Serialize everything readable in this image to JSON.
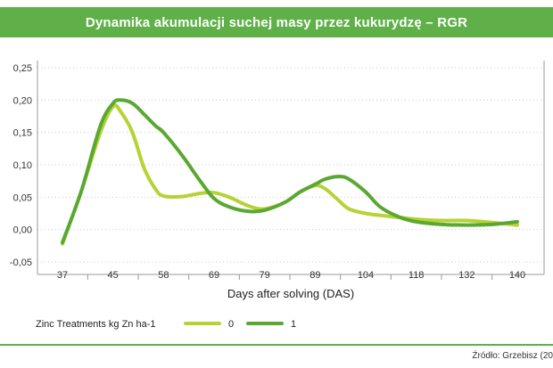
{
  "chart_data": {
    "type": "line",
    "title": "Dynamika akumulacji suchej masy przez kukurydzę – RGR",
    "xlabel": "Days after solving (DAS)",
    "ylabel": "",
    "categories": [
      "37",
      "45",
      "58",
      "69",
      "79",
      "89",
      "104",
      "118",
      "132",
      "140"
    ],
    "yticks": [
      "0,25",
      "0,20",
      "0,15",
      "0,10",
      "0,05",
      "0,00",
      "-0,05"
    ],
    "ylim": [
      -0.05,
      0.25
    ],
    "grid": "horizontal",
    "legend_title": "Zinc Treatments  kg Zn ha-1",
    "legend_position": "bottom-left",
    "series": [
      {
        "name": "0",
        "color": "#b5d334",
        "x": [
          37,
          40,
          43,
          45,
          47,
          50,
          53,
          56,
          58,
          62,
          66,
          69,
          72,
          76,
          79,
          83,
          86,
          89,
          92,
          96,
          99,
          104,
          108,
          113,
          118,
          125,
          132,
          136,
          140
        ],
        "values": [
          -0.022,
          0.06,
          0.15,
          0.19,
          0.182,
          0.15,
          0.095,
          0.062,
          0.052,
          0.051,
          0.056,
          0.057,
          0.05,
          0.036,
          0.032,
          0.042,
          0.058,
          0.068,
          0.063,
          0.045,
          0.032,
          0.025,
          0.022,
          0.019,
          0.016,
          0.014,
          0.014,
          0.011,
          0.007
        ]
      },
      {
        "name": "1",
        "color": "#5aa832",
        "x": [
          37,
          40,
          43,
          45,
          47,
          50,
          53,
          56,
          58,
          62,
          66,
          69,
          72,
          76,
          79,
          83,
          86,
          89,
          92,
          96,
          99,
          104,
          108,
          113,
          118,
          125,
          132,
          136,
          140
        ],
        "values": [
          -0.02,
          0.06,
          0.16,
          0.195,
          0.2,
          0.195,
          0.178,
          0.16,
          0.15,
          0.115,
          0.075,
          0.048,
          0.035,
          0.028,
          0.03,
          0.042,
          0.058,
          0.07,
          0.078,
          0.082,
          0.078,
          0.058,
          0.035,
          0.02,
          0.012,
          0.008,
          0.007,
          0.008,
          0.012
        ]
      }
    ]
  },
  "source": "Źródło: Grzebisz (20"
}
